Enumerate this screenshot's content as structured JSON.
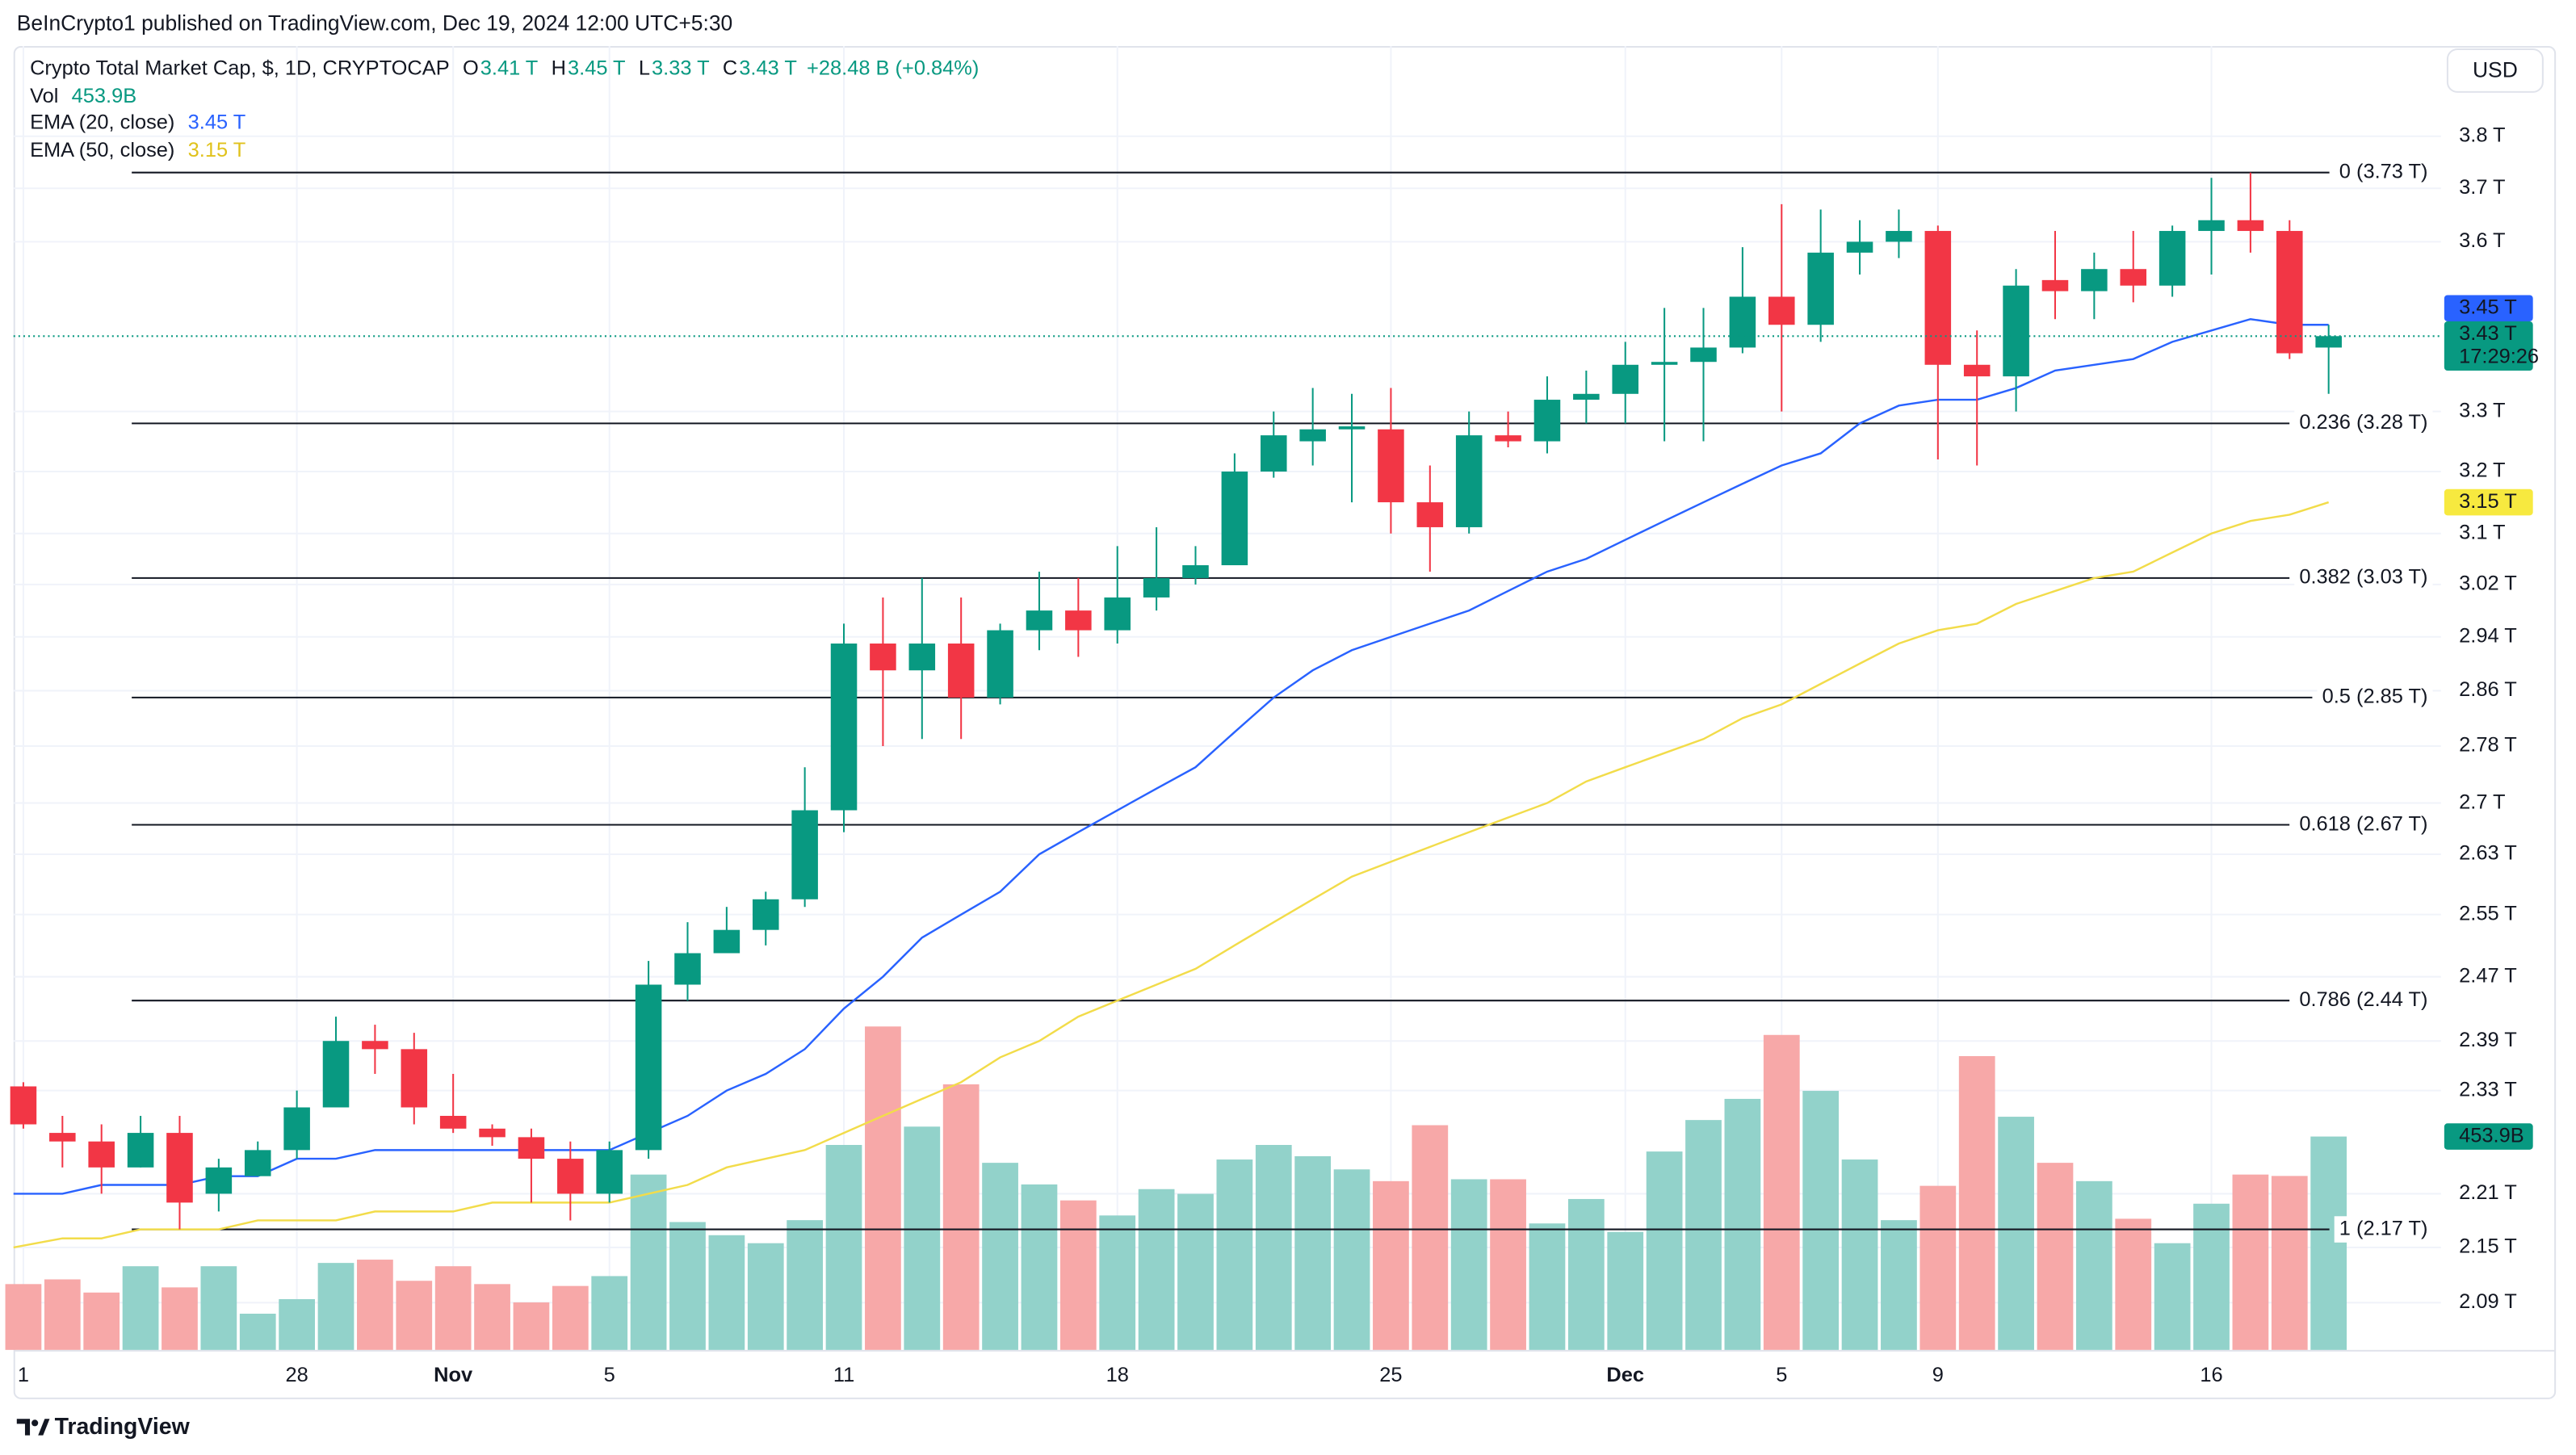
{
  "header": {
    "publisher": "BeInCrypto1 published on TradingView.com, Dec 19, 2024 12:00 UTC+5:30",
    "currency": "USD",
    "brand": "TradingView"
  },
  "chart_data": {
    "type": "candlestick",
    "title": "Crypto Total Market Cap, $, 1D, CRYPTOCAP",
    "ohlc_legend": [
      {
        "key": "O",
        "value": "3.41 T"
      },
      {
        "key": "H",
        "value": "3.45 T"
      },
      {
        "key": "L",
        "value": "3.33 T"
      },
      {
        "key": "C",
        "value": "3.43 T"
      }
    ],
    "change": "+28.48 B (+0.84%)",
    "categories": [
      "1",
      null,
      null,
      null,
      null,
      null,
      null,
      "28",
      null,
      null,
      null,
      "Nov",
      null,
      null,
      null,
      "5",
      null,
      null,
      null,
      null,
      null,
      "11",
      null,
      null,
      null,
      null,
      null,
      null,
      "18",
      null,
      null,
      null,
      null,
      null,
      null,
      "25",
      null,
      null,
      null,
      null,
      null,
      "Dec",
      null,
      null,
      null,
      "5",
      null,
      null,
      null,
      "9",
      null,
      null,
      null,
      null,
      null,
      null,
      "16",
      null,
      null,
      null
    ],
    "open": [
      2.335,
      2.28,
      2.27,
      2.24,
      2.28,
      2.21,
      2.23,
      2.26,
      2.31,
      2.39,
      2.38,
      2.3,
      2.285,
      2.275,
      2.25,
      2.21,
      2.26,
      2.46,
      2.5,
      2.53,
      2.57,
      2.69,
      2.93,
      2.89,
      2.93,
      2.85,
      2.95,
      2.98,
      2.95,
      3.0,
      3.03,
      3.05,
      3.2,
      3.25,
      3.27,
      3.27,
      3.15,
      3.11,
      3.26,
      3.25,
      3.32,
      3.33,
      3.38,
      3.385,
      3.41,
      3.5,
      3.45,
      3.58,
      3.6,
      3.62,
      3.38,
      3.36,
      3.53,
      3.51,
      3.55,
      3.52,
      3.62,
      3.64,
      3.62,
      3.41
    ],
    "high": [
      2.34,
      2.3,
      2.29,
      2.3,
      2.3,
      2.25,
      2.27,
      2.33,
      2.42,
      2.41,
      2.4,
      2.35,
      2.29,
      2.285,
      2.27,
      2.27,
      2.49,
      2.54,
      2.56,
      2.58,
      2.75,
      2.96,
      3.0,
      3.03,
      3.0,
      2.96,
      3.04,
      3.03,
      3.08,
      3.11,
      3.08,
      3.23,
      3.3,
      3.34,
      3.33,
      3.34,
      3.21,
      3.3,
      3.3,
      3.36,
      3.37,
      3.42,
      3.48,
      3.48,
      3.59,
      3.67,
      3.66,
      3.64,
      3.66,
      3.63,
      3.44,
      3.55,
      3.62,
      3.58,
      3.62,
      3.63,
      3.72,
      3.73,
      3.64,
      3.45
    ],
    "low": [
      2.285,
      2.24,
      2.21,
      2.24,
      2.17,
      2.19,
      2.23,
      2.25,
      2.31,
      2.35,
      2.29,
      2.28,
      2.265,
      2.2,
      2.18,
      2.2,
      2.25,
      2.44,
      2.5,
      2.51,
      2.56,
      2.66,
      2.78,
      2.79,
      2.79,
      2.84,
      2.92,
      2.91,
      2.93,
      2.98,
      3.02,
      3.05,
      3.19,
      3.21,
      3.15,
      3.1,
      3.04,
      3.1,
      3.24,
      3.23,
      3.28,
      3.28,
      3.25,
      3.25,
      3.4,
      3.3,
      3.42,
      3.54,
      3.57,
      3.22,
      3.21,
      3.3,
      3.46,
      3.46,
      3.49,
      3.5,
      3.54,
      3.58,
      3.39,
      3.33
    ],
    "close": [
      2.29,
      2.27,
      2.24,
      2.28,
      2.2,
      2.24,
      2.26,
      2.31,
      2.39,
      2.38,
      2.31,
      2.285,
      2.275,
      2.25,
      2.21,
      2.26,
      2.46,
      2.5,
      2.53,
      2.57,
      2.69,
      2.93,
      2.89,
      2.93,
      2.85,
      2.95,
      2.98,
      2.95,
      3.0,
      3.03,
      3.05,
      3.2,
      3.26,
      3.27,
      3.275,
      3.15,
      3.11,
      3.26,
      3.25,
      3.32,
      3.33,
      3.38,
      3.385,
      3.41,
      3.5,
      3.45,
      3.58,
      3.6,
      3.62,
      3.38,
      3.36,
      3.52,
      3.51,
      3.55,
      3.52,
      3.62,
      3.64,
      3.62,
      3.4,
      3.43
    ],
    "up_color": "#089981",
    "down_color": "#f23645",
    "log_scale": true,
    "grid": true,
    "ylim": [
      2.04,
      3.98
    ],
    "yticks": [
      {
        "value": 3.8,
        "label": "3.8 T"
      },
      {
        "value": 3.7,
        "label": "3.7 T"
      },
      {
        "value": 3.6,
        "label": "3.6 T"
      },
      {
        "value": 3.3,
        "label": "3.3 T"
      },
      {
        "value": 3.2,
        "label": "3.2 T"
      },
      {
        "value": 3.1,
        "label": "3.1 T"
      },
      {
        "value": 3.02,
        "label": "3.02 T"
      },
      {
        "value": 2.94,
        "label": "2.94 T"
      },
      {
        "value": 2.86,
        "label": "2.86 T"
      },
      {
        "value": 2.78,
        "label": "2.78 T"
      },
      {
        "value": 2.7,
        "label": "2.7 T"
      },
      {
        "value": 2.63,
        "label": "2.63 T"
      },
      {
        "value": 2.55,
        "label": "2.55 T"
      },
      {
        "value": 2.47,
        "label": "2.47 T"
      },
      {
        "value": 2.39,
        "label": "2.39 T"
      },
      {
        "value": 2.33,
        "label": "2.33 T"
      },
      {
        "value": 2.21,
        "label": "2.21 T"
      },
      {
        "value": 2.15,
        "label": "2.15 T"
      },
      {
        "value": 2.09,
        "label": "2.09 T"
      }
    ],
    "volume": {
      "name": "Vol",
      "last_label": "453.9B",
      "ylim": [
        0,
        800
      ],
      "up_color": "#92d2ca",
      "down_color": "#f7a8a8",
      "values": [
        140,
        150,
        122,
        178,
        133,
        178,
        77,
        108,
        185,
        192,
        147,
        178,
        140,
        101,
        136,
        157,
        373,
        272,
        244,
        227,
        276,
        436,
        688,
        475,
        565,
        398,
        352,
        318,
        286,
        342,
        332,
        405,
        436,
        412,
        384,
        359,
        478,
        363,
        363,
        269,
        321,
        251,
        422,
        489,
        534,
        670,
        551,
        405,
        276,
        349,
        625,
        496,
        398,
        359,
        279,
        227,
        311,
        373,
        370,
        453.9
      ]
    },
    "lines": [
      {
        "name": "EMA (20, close)",
        "last_label": "3.45 T",
        "color": "#2962ff",
        "values": [
          2.21,
          2.21,
          2.22,
          2.22,
          2.22,
          2.23,
          2.23,
          2.25,
          2.25,
          2.26,
          2.26,
          2.26,
          2.26,
          2.26,
          2.26,
          2.26,
          2.28,
          2.3,
          2.33,
          2.35,
          2.38,
          2.43,
          2.47,
          2.52,
          2.55,
          2.58,
          2.63,
          2.66,
          2.69,
          2.72,
          2.75,
          2.8,
          2.85,
          2.89,
          2.92,
          2.94,
          2.96,
          2.98,
          3.01,
          3.04,
          3.06,
          3.09,
          3.12,
          3.15,
          3.18,
          3.21,
          3.23,
          3.28,
          3.31,
          3.32,
          3.32,
          3.34,
          3.37,
          3.38,
          3.39,
          3.42,
          3.44,
          3.46,
          3.45,
          3.45
        ]
      },
      {
        "name": "EMA (50, close)",
        "last_label": "3.15 T",
        "color": "#f2dc4a",
        "values": [
          2.15,
          2.16,
          2.16,
          2.17,
          2.17,
          2.17,
          2.18,
          2.18,
          2.18,
          2.19,
          2.19,
          2.19,
          2.2,
          2.2,
          2.2,
          2.2,
          2.21,
          2.22,
          2.24,
          2.25,
          2.26,
          2.28,
          2.3,
          2.32,
          2.34,
          2.37,
          2.39,
          2.42,
          2.44,
          2.46,
          2.48,
          2.51,
          2.54,
          2.57,
          2.6,
          2.62,
          2.64,
          2.66,
          2.68,
          2.7,
          2.73,
          2.75,
          2.77,
          2.79,
          2.82,
          2.84,
          2.87,
          2.9,
          2.93,
          2.95,
          2.96,
          2.99,
          3.01,
          3.03,
          3.04,
          3.07,
          3.1,
          3.12,
          3.13,
          3.15
        ]
      }
    ],
    "last_price": {
      "value": 3.43,
      "label": "3.43 T",
      "countdown": "17:29:26"
    },
    "fib_levels": [
      {
        "value": 3.73,
        "label": "0 (3.73 T)"
      },
      {
        "value": 3.28,
        "label": "0.236 (3.28 T)"
      },
      {
        "value": 3.03,
        "label": "0.382 (3.03 T)"
      },
      {
        "value": 2.85,
        "label": "0.5 (2.85 T)"
      },
      {
        "value": 2.67,
        "label": "0.618 (2.67 T)"
      },
      {
        "value": 2.44,
        "label": "0.786 (2.44 T)"
      },
      {
        "value": 2.17,
        "label": "1 (2.17 T)"
      }
    ]
  }
}
